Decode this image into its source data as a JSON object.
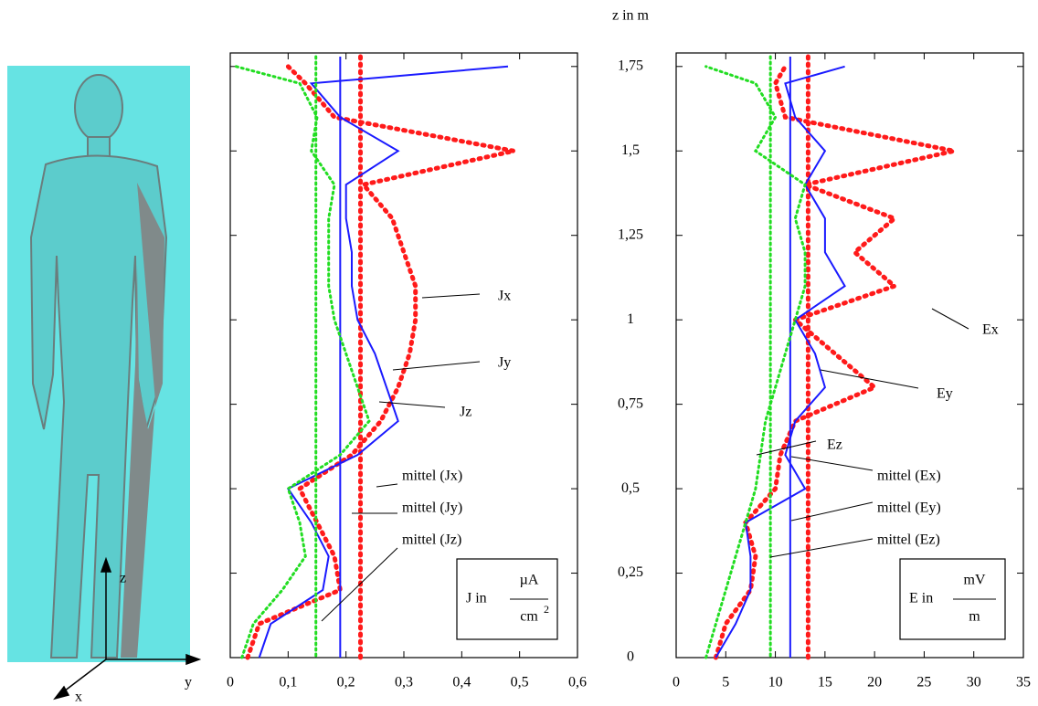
{
  "figure": {
    "axis_labels": [
      "z",
      "y",
      "x"
    ]
  },
  "chart_data": [
    {
      "type": "line",
      "ylabel": "z in m",
      "z": [
        0,
        0.1,
        0.2,
        0.3,
        0.4,
        0.5,
        0.6,
        0.7,
        0.8,
        0.9,
        1.0,
        1.1,
        1.2,
        1.3,
        1.4,
        1.5,
        1.6,
        1.7,
        1.75
      ],
      "xlim": [
        0,
        0.6
      ],
      "ylim": [
        0,
        1.79
      ],
      "xticks": [
        0,
        {
          "value": 0.1,
          "label": "0,1"
        },
        {
          "value": 0.2,
          "label": "0,2"
        },
        {
          "value": 0.3,
          "label": "0,3"
        },
        {
          "value": 0.4,
          "label": "0,4"
        },
        {
          "value": 0.5,
          "label": "0,5"
        },
        {
          "value": 0.6,
          "label": "0,6"
        }
      ],
      "yticks": [
        0,
        {
          "value": 0.25,
          "label": "0,25"
        },
        {
          "value": 0.5,
          "label": "0,5"
        },
        {
          "value": 0.75,
          "label": "0,75"
        },
        1,
        {
          "value": 1.25,
          "label": "1,25"
        },
        {
          "value": 1.5,
          "label": "1,5"
        },
        {
          "value": 1.75,
          "label": "1,75"
        }
      ],
      "unit": {
        "prefix": "J in",
        "numerator": "µA",
        "denominator": "cm",
        "exponent": "2"
      },
      "series": [
        {
          "name": "Jx",
          "mean_label": "mittel (Jx)",
          "color": "#ff1a1a",
          "style": "dotted-thick",
          "mean": 0.225,
          "values": [
            0.03,
            0.05,
            0.19,
            0.18,
            0.15,
            0.12,
            0.21,
            0.26,
            0.29,
            0.31,
            0.32,
            0.32,
            0.3,
            0.28,
            0.23,
            0.49,
            0.18,
            0.13,
            0.1
          ]
        },
        {
          "name": "Jy",
          "mean_label": "mittel (Jy)",
          "color": "#1a1aff",
          "style": "solid",
          "mean": 0.19,
          "values": [
            0.05,
            0.07,
            0.16,
            0.17,
            0.14,
            0.1,
            0.22,
            0.29,
            0.27,
            0.25,
            0.22,
            0.21,
            0.21,
            0.2,
            0.2,
            0.29,
            0.19,
            0.14,
            0.48
          ]
        },
        {
          "name": "Jz",
          "mean_label": "mittel (Jz)",
          "color": "#22dd22",
          "style": "dotted",
          "mean": 0.148,
          "values": [
            0.02,
            0.04,
            0.09,
            0.13,
            0.12,
            0.1,
            0.19,
            0.24,
            0.22,
            0.2,
            0.18,
            0.17,
            0.17,
            0.17,
            0.18,
            0.14,
            0.15,
            0.12,
            0.01
          ]
        }
      ]
    },
    {
      "type": "line",
      "z": [
        0,
        0.1,
        0.2,
        0.3,
        0.4,
        0.5,
        0.6,
        0.7,
        0.8,
        0.9,
        1.0,
        1.1,
        1.2,
        1.3,
        1.4,
        1.5,
        1.6,
        1.7,
        1.75
      ],
      "xlim": [
        0,
        35
      ],
      "ylim": [
        0,
        1.79
      ],
      "xticks": [
        0,
        5,
        10,
        15,
        20,
        25,
        30,
        35
      ],
      "unit": {
        "prefix": "E in",
        "numerator": "mV",
        "denominator": "m"
      },
      "series": [
        {
          "name": "Ex",
          "mean_label": "mittel (Ex)",
          "color": "#ff1a1a",
          "style": "dotted-thick",
          "mean": 13.3,
          "values": [
            4,
            5,
            7.5,
            8,
            7,
            10,
            10.5,
            12,
            20,
            16,
            12,
            22,
            18,
            22,
            13,
            28,
            11,
            10,
            11
          ]
        },
        {
          "name": "Ey",
          "mean_label": "mittel (Ey)",
          "color": "#1a1aff",
          "style": "solid",
          "mean": 11.5,
          "values": [
            4,
            6,
            7.5,
            7.5,
            7,
            13,
            11,
            12,
            15,
            14,
            12,
            17,
            15,
            15,
            13,
            15,
            12,
            11,
            17
          ]
        },
        {
          "name": "Ez",
          "mean_label": "mittel (Ez)",
          "color": "#22dd22",
          "style": "dotted",
          "mean": 9.5,
          "values": [
            3,
            4,
            5,
            6,
            7,
            8,
            8.5,
            9,
            10,
            11,
            12,
            13,
            13,
            12,
            13,
            8,
            10,
            8,
            3
          ]
        }
      ]
    }
  ]
}
